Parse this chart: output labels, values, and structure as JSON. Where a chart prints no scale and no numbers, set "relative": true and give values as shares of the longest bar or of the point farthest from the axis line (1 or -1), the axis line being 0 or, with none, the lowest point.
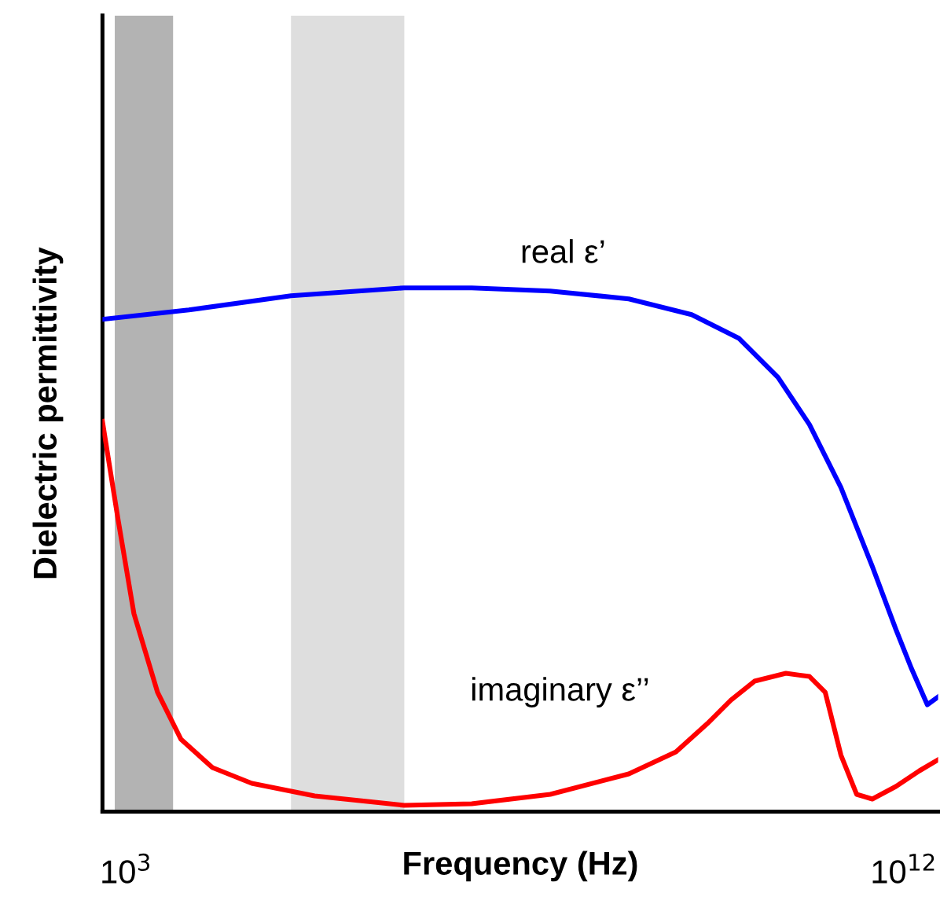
{
  "chart_data": {
    "type": "line",
    "xlabel": "Frequency (Hz)",
    "ylabel": "Dielectric permittivity",
    "log": "x",
    "relative": true,
    "xlim": [
      533,
      2500000000000.0
    ],
    "xticks": [
      {
        "value": 1000,
        "label": "10$^{3}$"
      },
      {
        "value": 1000000000000.0,
        "label": "10$^{12}$"
      }
    ],
    "grid": false,
    "legend": false,
    "series": [
      {
        "name": "real ε’",
        "color": "#0000ff",
        "x": [
          533,
          5333,
          81100,
          1652000.0,
          10000000.0,
          81100000.0,
          658000000.0,
          3510000000.0,
          12300000000.0,
          35100000000.0,
          81100000000.0,
          187500000000.0,
          433000000000.0,
          811000000000.0,
          1230000000000.0,
          1875000000000.0,
          2500000000000.0
        ],
        "values": [
          0.94,
          0.958,
          0.985,
          1.0,
          1.0,
          0.994,
          0.979,
          0.949,
          0.904,
          0.829,
          0.739,
          0.619,
          0.468,
          0.348,
          0.273,
          0.204,
          0.219
        ]
      },
      {
        "name": "imaginary ε’’",
        "color": "#ff0000",
        "x": [
          533,
          811,
          1233,
          2312,
          4325,
          10000.0,
          28510,
          152000,
          1652000.0,
          10000000.0,
          81100000.0,
          658000000.0,
          2310000000.0,
          5330000000.0,
          10000000000.0,
          18750000000.0,
          43300000000.0,
          81100000000.0,
          123300000000.0,
          187500000000.0,
          285000000000.0,
          433000000000.0,
          811000000000.0,
          1520000000000.0,
          2500000000000.0
        ],
        "values": [
          0.745,
          0.556,
          0.378,
          0.228,
          0.138,
          0.084,
          0.054,
          0.03,
          0.012,
          0.015,
          0.033,
          0.072,
          0.114,
          0.168,
          0.213,
          0.249,
          0.264,
          0.258,
          0.228,
          0.108,
          0.033,
          0.024,
          0.048,
          0.078,
          0.099
        ]
      }
    ],
    "bands": [
      {
        "axis": "x",
        "from": 740,
        "to": 3500,
        "color": "#b3b3b3"
      },
      {
        "axis": "x",
        "from": 81000,
        "to": 1660000.0,
        "color": "#dedede"
      }
    ]
  }
}
